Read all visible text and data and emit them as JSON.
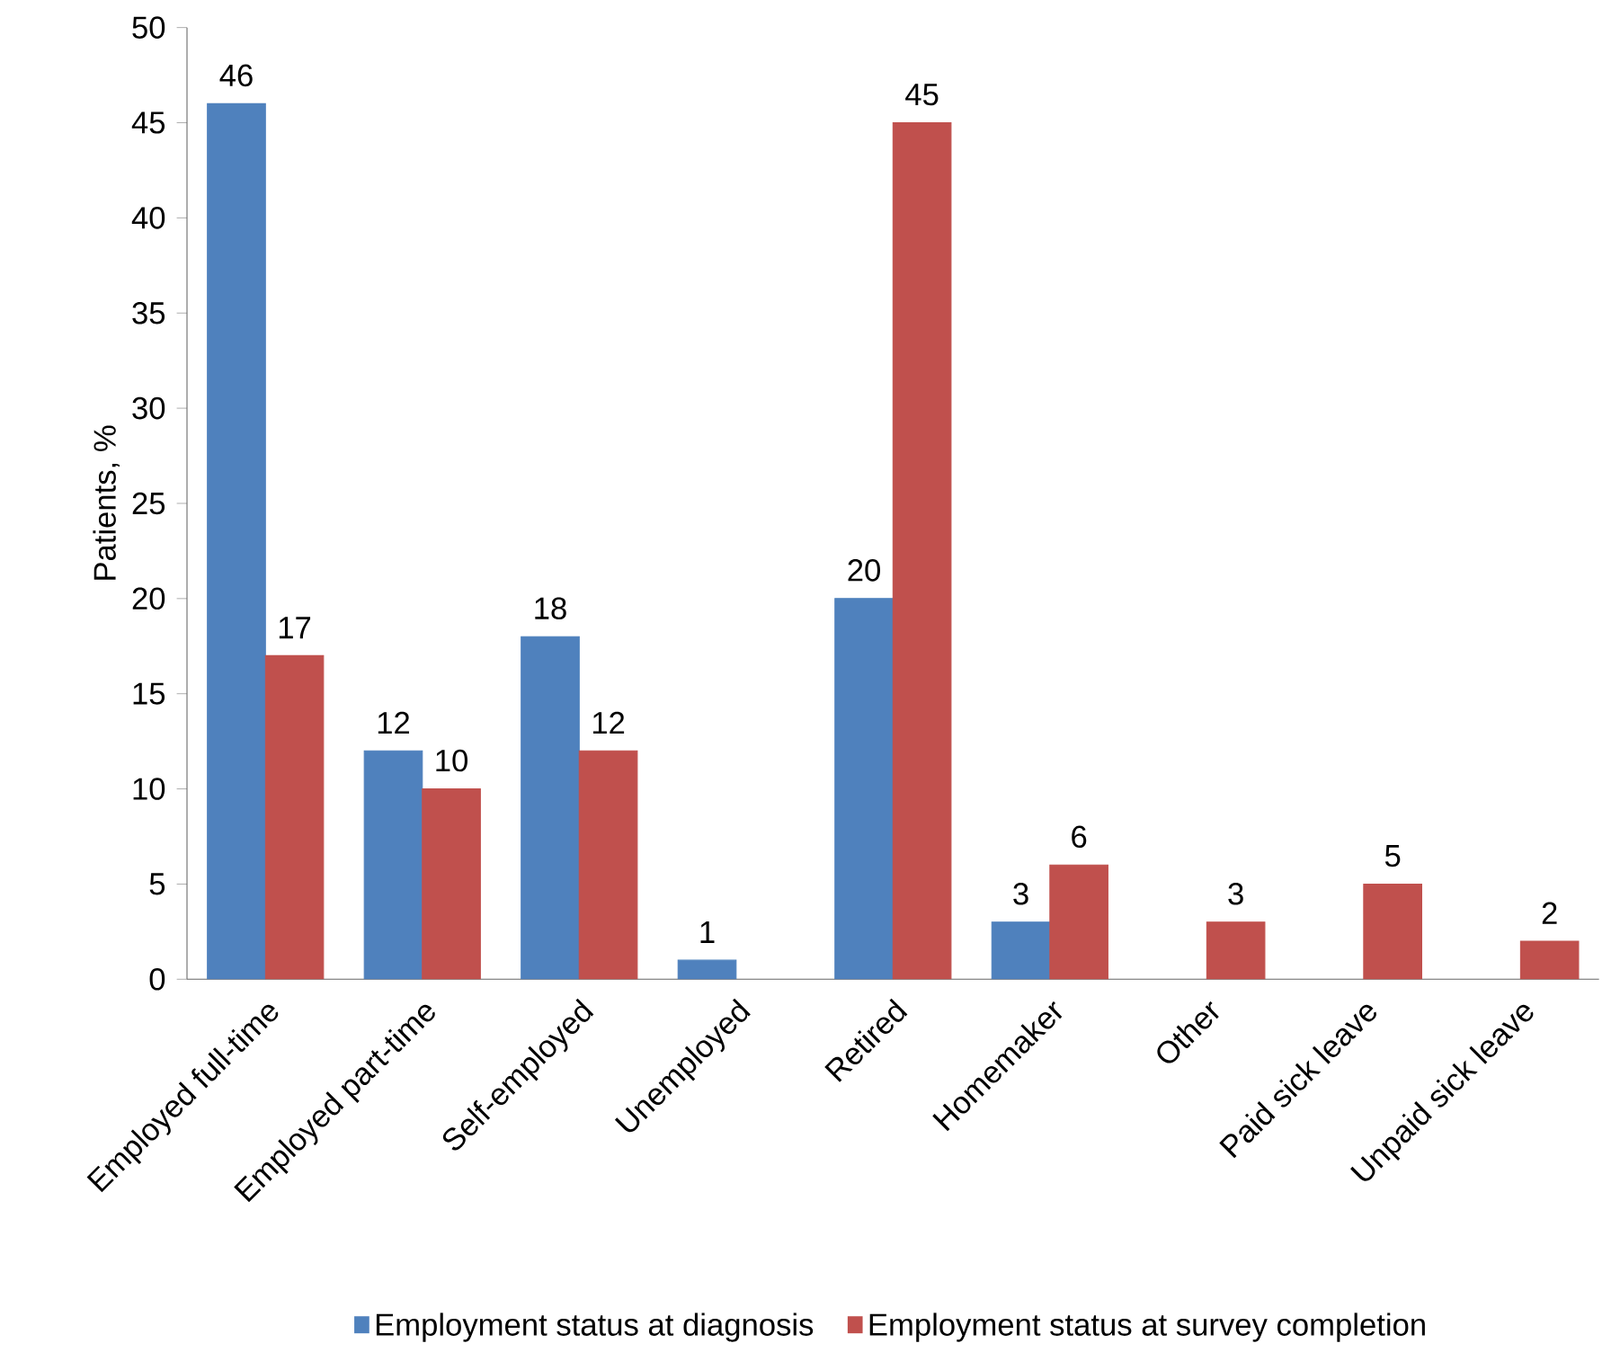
{
  "chart_data": {
    "type": "bar",
    "ylabel": "Patients, %",
    "categories": [
      "Employed full-time",
      "Employed part-time",
      "Self-employed",
      "Unemployed",
      "Retired",
      "Homemaker",
      "Other",
      "Paid sick leave",
      "Unpaid sick leave"
    ],
    "series": [
      {
        "name": "Employment status at diagnosis",
        "color": "#4f81bd",
        "values": [
          46,
          12,
          18,
          1,
          20,
          3,
          null,
          null,
          null
        ]
      },
      {
        "name": "Employment status at survey completion",
        "color": "#c0504d",
        "values": [
          17,
          10,
          12,
          null,
          45,
          6,
          3,
          5,
          2
        ]
      }
    ],
    "ylim": [
      0,
      50
    ],
    "yticks": [
      0,
      5,
      10,
      15,
      20,
      25,
      30,
      35,
      40,
      45,
      50
    ],
    "data_labels": true,
    "grid": false,
    "legend": "bottom"
  }
}
